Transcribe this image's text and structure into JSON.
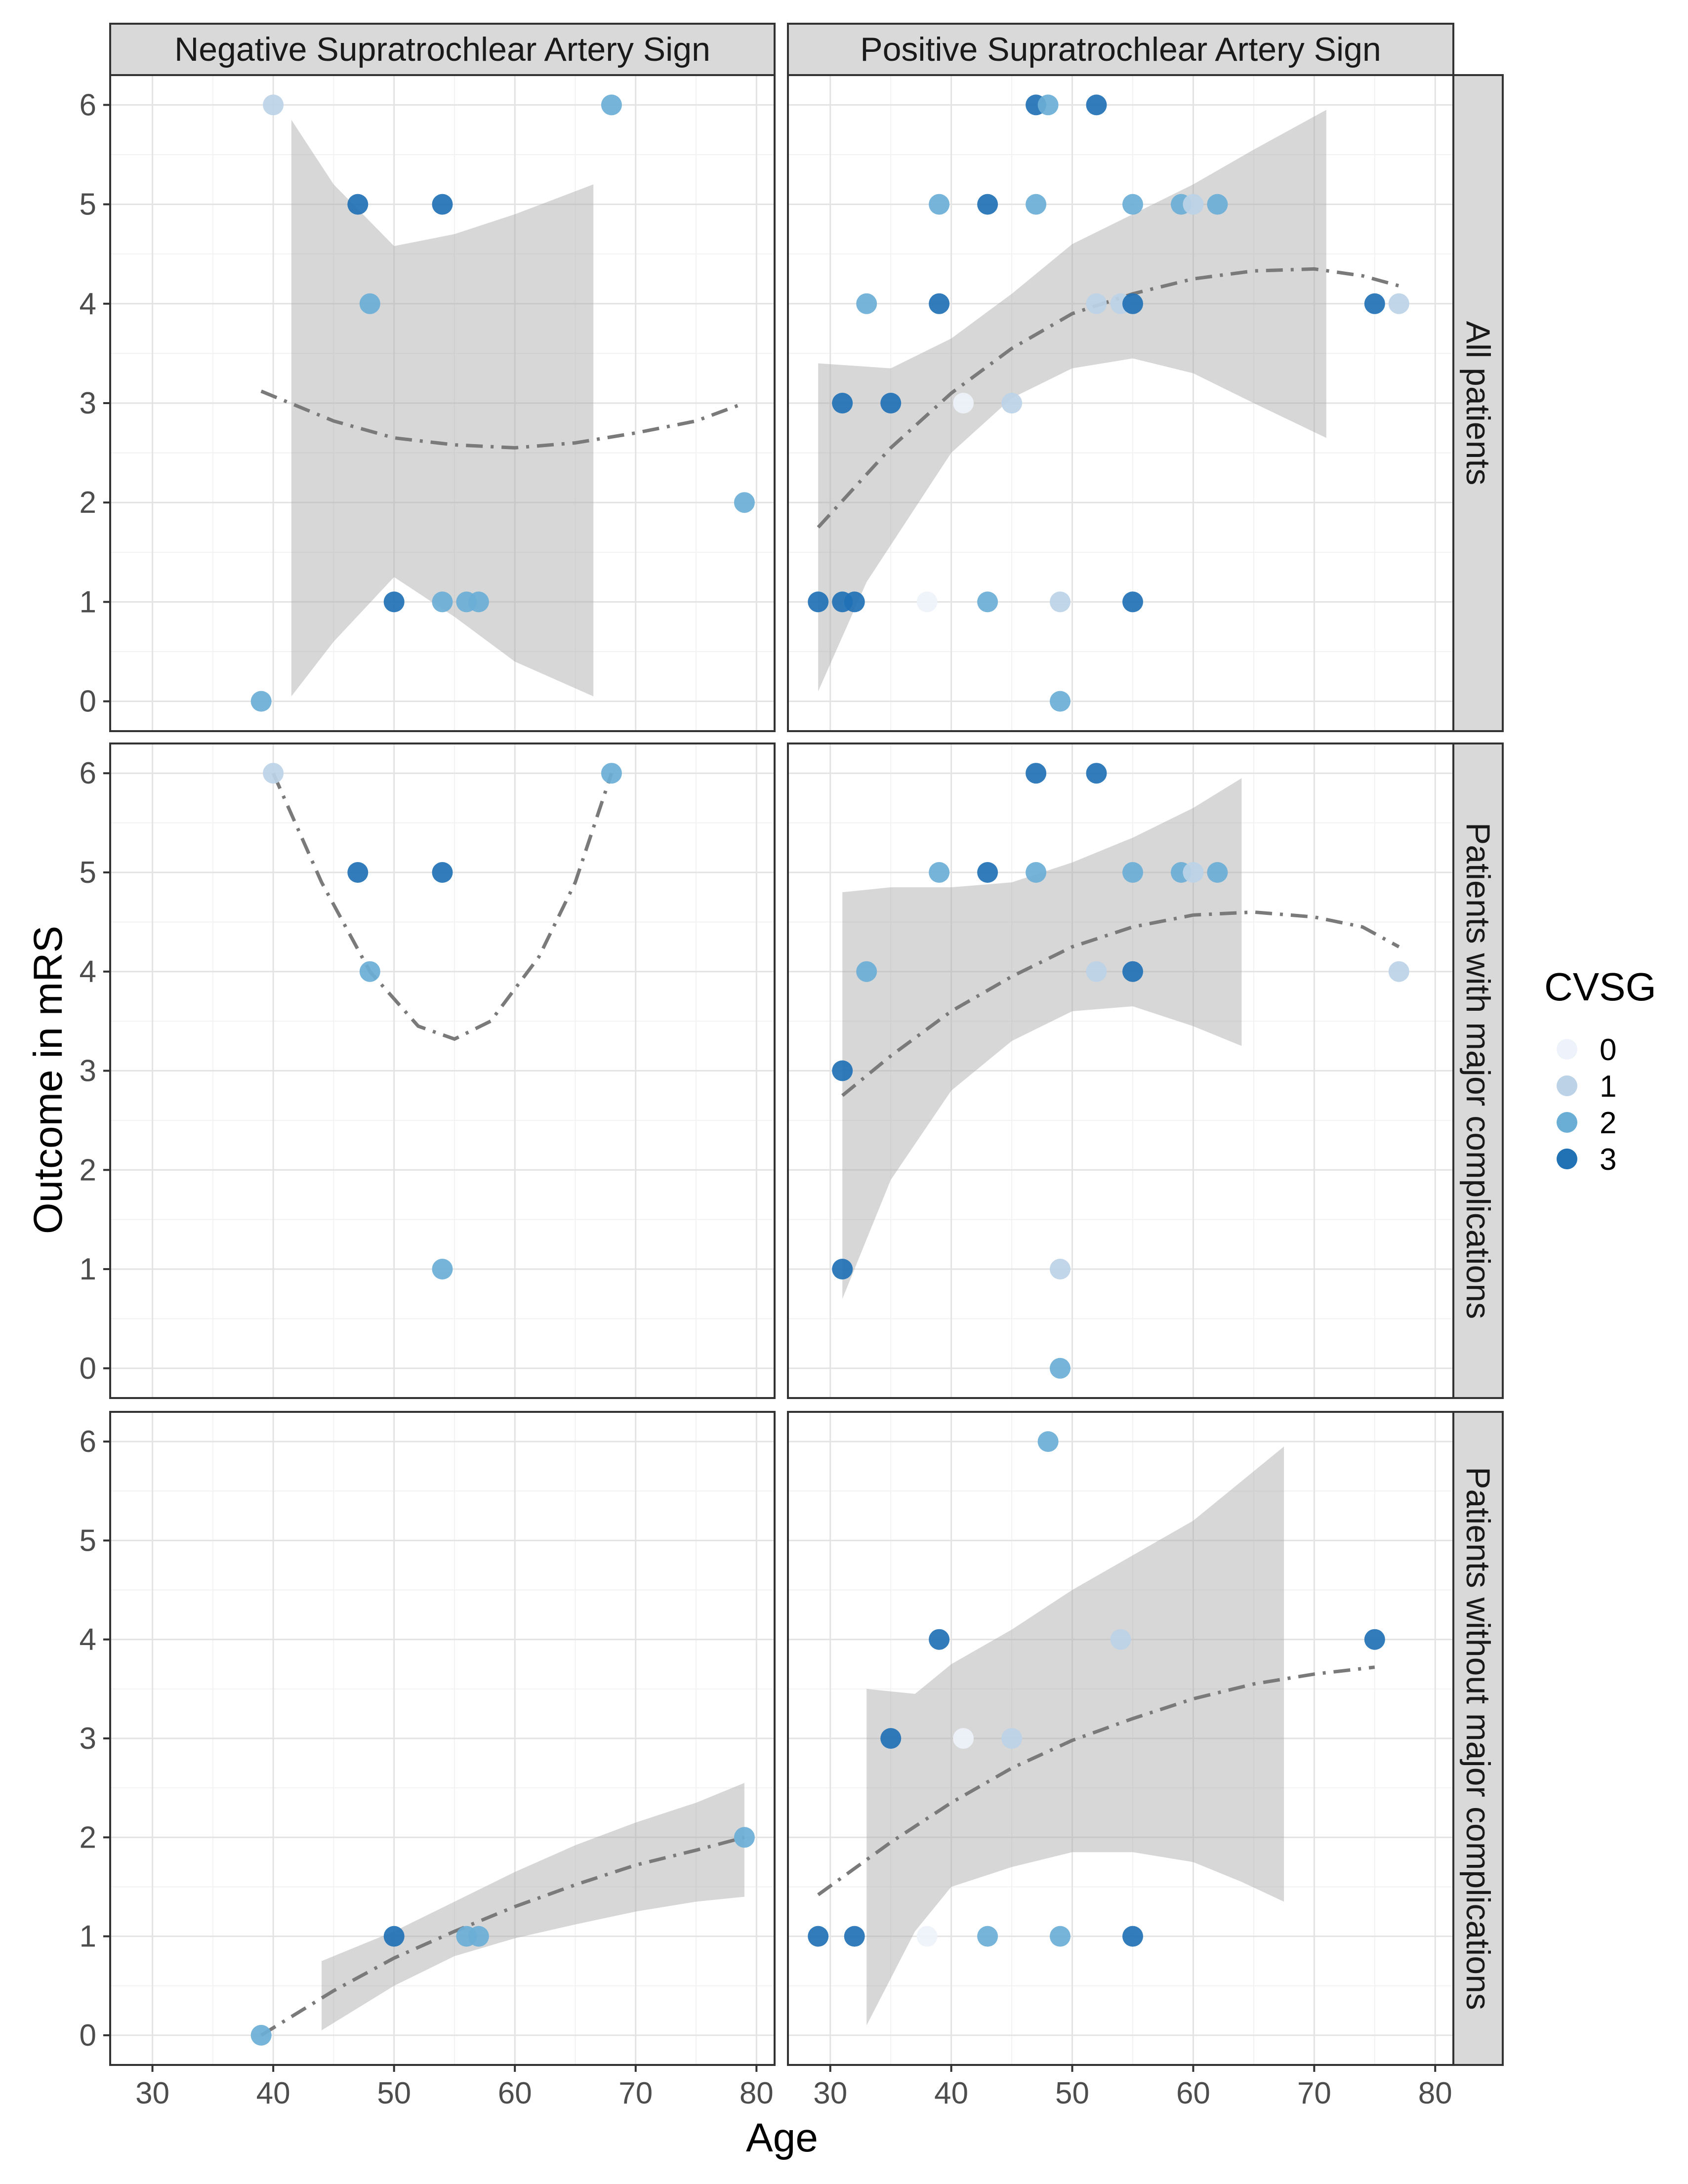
{
  "chart_data": {
    "type": "scatter",
    "xlabel": "Age",
    "ylabel": "Outcome in mRS",
    "xlim": [
      26.5,
      81.5
    ],
    "ylim": [
      -0.3,
      6.3
    ],
    "x_ticks": [
      30,
      40,
      50,
      60,
      70,
      80
    ],
    "y_ticks": [
      0,
      1,
      2,
      3,
      4,
      5,
      6
    ],
    "grid": true,
    "legend": {
      "title": "CVSG",
      "position": "right",
      "entries": [
        {
          "label": "0",
          "color": "#eef2fa"
        },
        {
          "label": "1",
          "color": "#bcd2e7"
        },
        {
          "label": "2",
          "color": "#6aaed6"
        },
        {
          "label": "3",
          "color": "#2171b5"
        }
      ]
    },
    "col_labels": [
      "Negative Supratrochlear Artery Sign",
      "Positive Supratrochlear Artery Sign"
    ],
    "row_labels": [
      "All patients",
      "Patients with major complications",
      "Patients without major complications"
    ],
    "panels": [
      {
        "row": 0,
        "col": 0,
        "points": [
          {
            "x": 40,
            "y": 6,
            "cvsg": 1
          },
          {
            "x": 68,
            "y": 6,
            "cvsg": 2
          },
          {
            "x": 47,
            "y": 5,
            "cvsg": 3
          },
          {
            "x": 54,
            "y": 5,
            "cvsg": 3
          },
          {
            "x": 48,
            "y": 4,
            "cvsg": 2
          },
          {
            "x": 79,
            "y": 2,
            "cvsg": 2
          },
          {
            "x": 50,
            "y": 1,
            "cvsg": 3
          },
          {
            "x": 54,
            "y": 1,
            "cvsg": 2
          },
          {
            "x": 56,
            "y": 1,
            "cvsg": 2
          },
          {
            "x": 57,
            "y": 1,
            "cvsg": 2
          },
          {
            "x": 39,
            "y": 0,
            "cvsg": 2
          }
        ],
        "fit": [
          [
            39,
            3.12
          ],
          [
            45,
            2.82
          ],
          [
            50,
            2.65
          ],
          [
            55,
            2.58
          ],
          [
            60,
            2.55
          ],
          [
            65,
            2.6
          ],
          [
            70,
            2.7
          ],
          [
            75,
            2.82
          ],
          [
            79,
            3.0
          ]
        ],
        "band_upper": [
          [
            41.5,
            5.85
          ],
          [
            45,
            5.2
          ],
          [
            50,
            4.58
          ],
          [
            55,
            4.7
          ],
          [
            60,
            4.9
          ],
          [
            66.5,
            5.2
          ]
        ],
        "band_lower": [
          [
            41.5,
            0.05
          ],
          [
            45,
            0.6
          ],
          [
            50,
            1.25
          ],
          [
            55,
            0.85
          ],
          [
            60,
            0.4
          ],
          [
            66.5,
            0.05
          ]
        ]
      },
      {
        "row": 0,
        "col": 1,
        "points": [
          {
            "x": 47,
            "y": 6,
            "cvsg": 3
          },
          {
            "x": 48,
            "y": 6,
            "cvsg": 2
          },
          {
            "x": 52,
            "y": 6,
            "cvsg": 3
          },
          {
            "x": 39,
            "y": 5,
            "cvsg": 2
          },
          {
            "x": 43,
            "y": 5,
            "cvsg": 3
          },
          {
            "x": 47,
            "y": 5,
            "cvsg": 2
          },
          {
            "x": 55,
            "y": 5,
            "cvsg": 2
          },
          {
            "x": 59,
            "y": 5,
            "cvsg": 2
          },
          {
            "x": 60,
            "y": 5,
            "cvsg": 1
          },
          {
            "x": 62,
            "y": 5,
            "cvsg": 2
          },
          {
            "x": 33,
            "y": 4,
            "cvsg": 2
          },
          {
            "x": 39,
            "y": 4,
            "cvsg": 3
          },
          {
            "x": 52,
            "y": 4,
            "cvsg": 1
          },
          {
            "x": 54,
            "y": 4,
            "cvsg": 1
          },
          {
            "x": 55,
            "y": 4,
            "cvsg": 3
          },
          {
            "x": 75,
            "y": 4,
            "cvsg": 3
          },
          {
            "x": 77,
            "y": 4,
            "cvsg": 1
          },
          {
            "x": 31,
            "y": 3,
            "cvsg": 3
          },
          {
            "x": 35,
            "y": 3,
            "cvsg": 3
          },
          {
            "x": 41,
            "y": 3,
            "cvsg": 0
          },
          {
            "x": 45,
            "y": 3,
            "cvsg": 1
          },
          {
            "x": 29,
            "y": 1,
            "cvsg": 3
          },
          {
            "x": 31,
            "y": 1,
            "cvsg": 3
          },
          {
            "x": 32,
            "y": 1,
            "cvsg": 3
          },
          {
            "x": 38,
            "y": 1,
            "cvsg": 0
          },
          {
            "x": 43,
            "y": 1,
            "cvsg": 2
          },
          {
            "x": 49,
            "y": 1,
            "cvsg": 1
          },
          {
            "x": 55,
            "y": 1,
            "cvsg": 3
          },
          {
            "x": 49,
            "y": 0,
            "cvsg": 2
          }
        ],
        "fit": [
          [
            29,
            1.75
          ],
          [
            35,
            2.55
          ],
          [
            40,
            3.1
          ],
          [
            45,
            3.55
          ],
          [
            50,
            3.9
          ],
          [
            55,
            4.1
          ],
          [
            60,
            4.25
          ],
          [
            65,
            4.33
          ],
          [
            70,
            4.35
          ],
          [
            74,
            4.28
          ],
          [
            77,
            4.18
          ]
        ],
        "band_upper": [
          [
            29,
            3.4
          ],
          [
            35,
            3.35
          ],
          [
            40,
            3.65
          ],
          [
            45,
            4.1
          ],
          [
            50,
            4.6
          ],
          [
            55,
            4.9
          ],
          [
            60,
            5.2
          ],
          [
            65,
            5.55
          ],
          [
            71,
            5.95
          ]
        ],
        "band_lower": [
          [
            29,
            0.1
          ],
          [
            33,
            1.2
          ],
          [
            40,
            2.5
          ],
          [
            45,
            3.05
          ],
          [
            50,
            3.35
          ],
          [
            55,
            3.45
          ],
          [
            60,
            3.3
          ],
          [
            65,
            3.0
          ],
          [
            71,
            2.65
          ]
        ]
      },
      {
        "row": 1,
        "col": 0,
        "points": [
          {
            "x": 40,
            "y": 6,
            "cvsg": 1
          },
          {
            "x": 68,
            "y": 6,
            "cvsg": 2
          },
          {
            "x": 47,
            "y": 5,
            "cvsg": 3
          },
          {
            "x": 54,
            "y": 5,
            "cvsg": 3
          },
          {
            "x": 48,
            "y": 4,
            "cvsg": 2
          },
          {
            "x": 54,
            "y": 1,
            "cvsg": 2
          }
        ],
        "fit": [
          [
            40,
            6.0
          ],
          [
            44,
            4.9
          ],
          [
            48,
            4.0
          ],
          [
            52,
            3.45
          ],
          [
            55,
            3.32
          ],
          [
            58,
            3.5
          ],
          [
            62,
            4.15
          ],
          [
            65,
            4.9
          ],
          [
            68,
            6.0
          ]
        ]
      },
      {
        "row": 1,
        "col": 1,
        "points": [
          {
            "x": 47,
            "y": 6,
            "cvsg": 3
          },
          {
            "x": 52,
            "y": 6,
            "cvsg": 3
          },
          {
            "x": 39,
            "y": 5,
            "cvsg": 2
          },
          {
            "x": 43,
            "y": 5,
            "cvsg": 3
          },
          {
            "x": 47,
            "y": 5,
            "cvsg": 2
          },
          {
            "x": 55,
            "y": 5,
            "cvsg": 2
          },
          {
            "x": 59,
            "y": 5,
            "cvsg": 2
          },
          {
            "x": 60,
            "y": 5,
            "cvsg": 1
          },
          {
            "x": 62,
            "y": 5,
            "cvsg": 2
          },
          {
            "x": 33,
            "y": 4,
            "cvsg": 2
          },
          {
            "x": 52,
            "y": 4,
            "cvsg": 1
          },
          {
            "x": 55,
            "y": 4,
            "cvsg": 3
          },
          {
            "x": 77,
            "y": 4,
            "cvsg": 1
          },
          {
            "x": 31,
            "y": 3,
            "cvsg": 3
          },
          {
            "x": 31,
            "y": 1,
            "cvsg": 3
          },
          {
            "x": 49,
            "y": 1,
            "cvsg": 1
          },
          {
            "x": 49,
            "y": 0,
            "cvsg": 2
          }
        ],
        "fit": [
          [
            31,
            2.75
          ],
          [
            35,
            3.15
          ],
          [
            40,
            3.6
          ],
          [
            45,
            3.95
          ],
          [
            50,
            4.25
          ],
          [
            55,
            4.45
          ],
          [
            60,
            4.57
          ],
          [
            65,
            4.6
          ],
          [
            70,
            4.55
          ],
          [
            74,
            4.45
          ],
          [
            77,
            4.25
          ]
        ],
        "band_upper": [
          [
            31,
            4.8
          ],
          [
            35,
            4.85
          ],
          [
            40,
            4.85
          ],
          [
            45,
            4.9
          ],
          [
            50,
            5.1
          ],
          [
            55,
            5.35
          ],
          [
            60,
            5.65
          ],
          [
            64,
            5.95
          ]
        ],
        "band_lower": [
          [
            31,
            0.7
          ],
          [
            35,
            1.9
          ],
          [
            40,
            2.8
          ],
          [
            45,
            3.3
          ],
          [
            50,
            3.6
          ],
          [
            55,
            3.65
          ],
          [
            60,
            3.45
          ],
          [
            64,
            3.25
          ]
        ]
      },
      {
        "row": 2,
        "col": 0,
        "points": [
          {
            "x": 39,
            "y": 0,
            "cvsg": 2
          },
          {
            "x": 50,
            "y": 1,
            "cvsg": 3
          },
          {
            "x": 56,
            "y": 1,
            "cvsg": 2
          },
          {
            "x": 57,
            "y": 1,
            "cvsg": 2
          },
          {
            "x": 79,
            "y": 2,
            "cvsg": 2
          }
        ],
        "fit": [
          [
            39,
            0.0
          ],
          [
            45,
            0.45
          ],
          [
            50,
            0.78
          ],
          [
            55,
            1.05
          ],
          [
            60,
            1.3
          ],
          [
            65,
            1.52
          ],
          [
            70,
            1.72
          ],
          [
            75,
            1.87
          ],
          [
            79,
            2.0
          ]
        ],
        "band_upper": [
          [
            44,
            0.75
          ],
          [
            50,
            1.05
          ],
          [
            55,
            1.35
          ],
          [
            60,
            1.65
          ],
          [
            65,
            1.92
          ],
          [
            70,
            2.15
          ],
          [
            75,
            2.35
          ],
          [
            79,
            2.55
          ]
        ],
        "band_lower": [
          [
            44,
            0.05
          ],
          [
            50,
            0.5
          ],
          [
            55,
            0.8
          ],
          [
            60,
            0.98
          ],
          [
            65,
            1.12
          ],
          [
            70,
            1.25
          ],
          [
            75,
            1.35
          ],
          [
            79,
            1.4
          ]
        ]
      },
      {
        "row": 2,
        "col": 1,
        "points": [
          {
            "x": 48,
            "y": 6,
            "cvsg": 2
          },
          {
            "x": 39,
            "y": 4,
            "cvsg": 3
          },
          {
            "x": 54,
            "y": 4,
            "cvsg": 1
          },
          {
            "x": 75,
            "y": 4,
            "cvsg": 3
          },
          {
            "x": 35,
            "y": 3,
            "cvsg": 3
          },
          {
            "x": 41,
            "y": 3,
            "cvsg": 0
          },
          {
            "x": 45,
            "y": 3,
            "cvsg": 1
          },
          {
            "x": 29,
            "y": 1,
            "cvsg": 3
          },
          {
            "x": 32,
            "y": 1,
            "cvsg": 3
          },
          {
            "x": 38,
            "y": 1,
            "cvsg": 0
          },
          {
            "x": 43,
            "y": 1,
            "cvsg": 2
          },
          {
            "x": 49,
            "y": 1,
            "cvsg": 2
          },
          {
            "x": 55,
            "y": 1,
            "cvsg": 3
          }
        ],
        "fit": [
          [
            29,
            1.42
          ],
          [
            35,
            1.95
          ],
          [
            40,
            2.35
          ],
          [
            45,
            2.7
          ],
          [
            50,
            2.98
          ],
          [
            55,
            3.2
          ],
          [
            60,
            3.4
          ],
          [
            65,
            3.55
          ],
          [
            70,
            3.65
          ],
          [
            75,
            3.72
          ]
        ],
        "band_upper": [
          [
            33,
            3.5
          ],
          [
            37,
            3.45
          ],
          [
            40,
            3.75
          ],
          [
            45,
            4.1
          ],
          [
            50,
            4.5
          ],
          [
            55,
            4.85
          ],
          [
            60,
            5.2
          ],
          [
            64,
            5.6
          ],
          [
            67.5,
            5.95
          ]
        ],
        "band_lower": [
          [
            33,
            0.1
          ],
          [
            37,
            1.05
          ],
          [
            40,
            1.5
          ],
          [
            45,
            1.7
          ],
          [
            50,
            1.85
          ],
          [
            55,
            1.85
          ],
          [
            60,
            1.75
          ],
          [
            64,
            1.55
          ],
          [
            67.5,
            1.35
          ]
        ]
      }
    ]
  }
}
